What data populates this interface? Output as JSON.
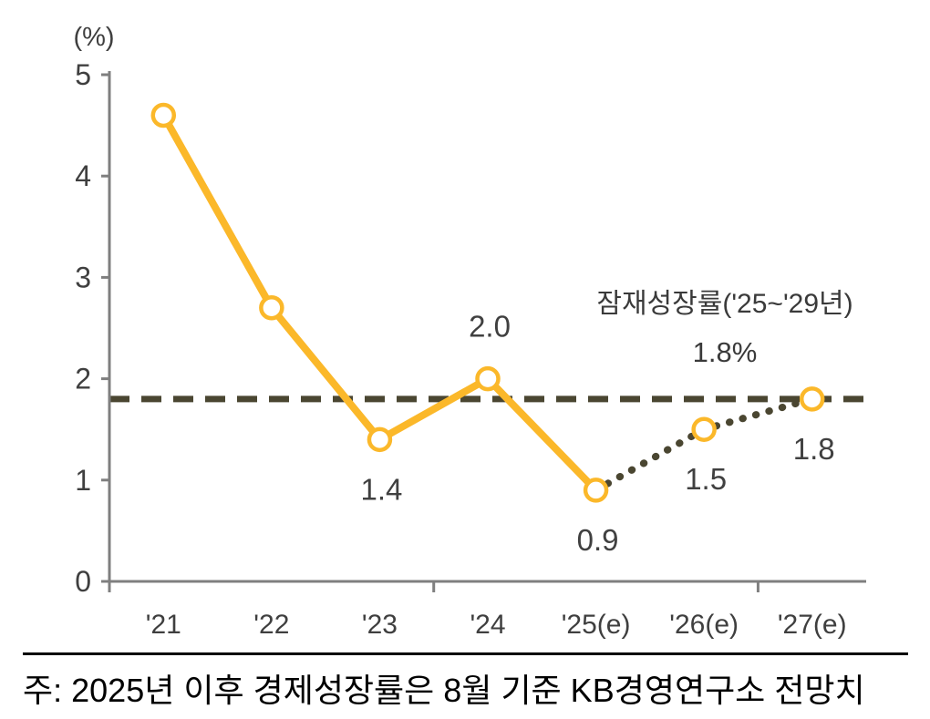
{
  "chart": {
    "unit_label": "(%)",
    "annotation": {
      "title": "잠재성장률('25~'29년)",
      "value": "1.8%"
    },
    "note": "주: 2025년 이후 경제성장률은 8월 기준 KB경영연구소 전망치",
    "colors": {
      "series_line": "#FBB82A",
      "marker_fill": "#FFFFFF",
      "reference_line": "#4A4631",
      "forecast_dotted_line": "#4A4631",
      "axis": "#7F7F7F",
      "tick_text": "#3F3F3F",
      "data_label_text": "#404040",
      "annotation_text": "#3A3A3A",
      "note_text": "#000000"
    }
  },
  "chart_data": {
    "type": "line",
    "title": "",
    "xlabel": "",
    "ylabel": "(%)",
    "categories": [
      "'21",
      "'22",
      "'23",
      "'24",
      "'25(e)",
      "'26(e)",
      "'27(e)"
    ],
    "series": [
      {
        "name": "경제성장률",
        "values": [
          4.6,
          2.7,
          1.4,
          2.0,
          0.9,
          1.5,
          1.8
        ]
      }
    ],
    "data_labels": [
      "",
      "",
      "1.4",
      "2.0",
      "0.9",
      "1.5",
      "1.8"
    ],
    "data_label_placement": [
      "",
      "",
      "below",
      "above",
      "below",
      "below",
      "below"
    ],
    "forecast_start_index": 4,
    "ylim": [
      0,
      5
    ],
    "y_ticks": [
      0,
      1,
      2,
      3,
      4,
      5
    ],
    "x_tick_boundary_indices": [
      0,
      3,
      6
    ],
    "grid": false,
    "legend_position": "none",
    "reference_line": {
      "value": 1.8,
      "label": "잠재성장률('25~'29년)",
      "value_label": "1.8%"
    }
  }
}
